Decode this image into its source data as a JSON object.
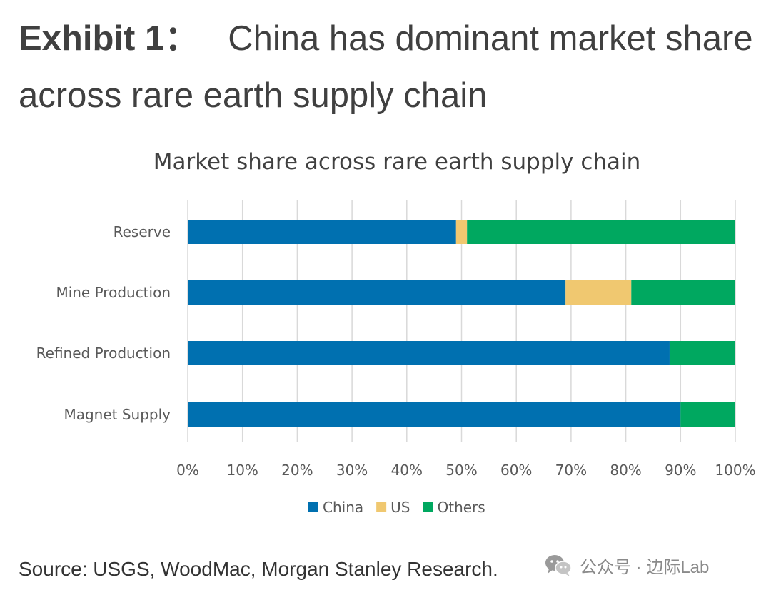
{
  "header": {
    "exhibit_label": "Exhibit 1：",
    "exhibit_text": "China has dominant market share across rare earth supply chain"
  },
  "chart_data": {
    "type": "bar",
    "orientation": "horizontal",
    "stacked": true,
    "title": "Market share across rare earth supply chain",
    "categories": [
      "Reserve",
      "Mine Production",
      "Refined Production",
      "Magnet Supply"
    ],
    "series": [
      {
        "name": "China",
        "color": "#0070b0",
        "values": [
          49,
          69,
          88,
          90
        ]
      },
      {
        "name": "US",
        "color": "#f0c870",
        "values": [
          2,
          12,
          0,
          0
        ]
      },
      {
        "name": "Others",
        "color": "#00a860",
        "values": [
          49,
          19,
          12,
          10
        ]
      }
    ],
    "xlim": [
      0,
      100
    ],
    "x_ticks": [
      "0%",
      "10%",
      "20%",
      "30%",
      "40%",
      "50%",
      "60%",
      "70%",
      "80%",
      "90%",
      "100%"
    ],
    "grid": true,
    "legend_position": "bottom"
  },
  "footer": {
    "source": "Source: USGS, WoodMac, Morgan Stanley Research.",
    "watermark_text": "公众号 · 边际Lab"
  },
  "icons": {
    "watermark": "wechat-icon"
  }
}
